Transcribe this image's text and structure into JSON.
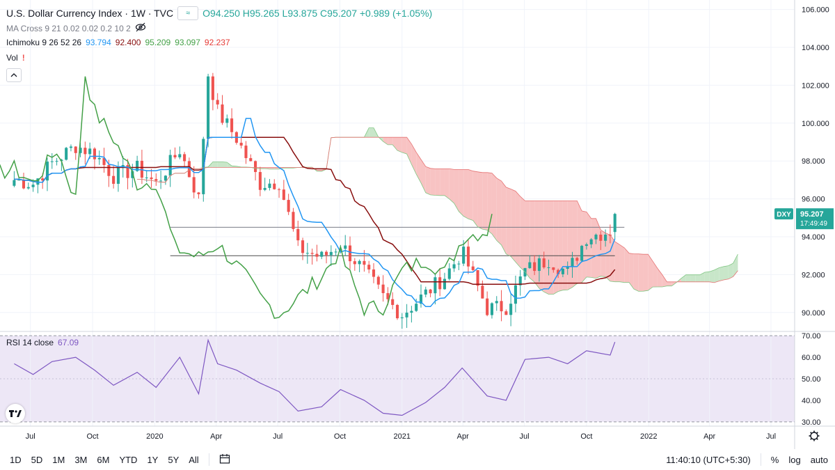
{
  "header": {
    "title": "U.S. Dollar Currency Index · 1W · TVC",
    "compare_badge": "≈",
    "ohlc": "O94.250 H95.265 L93.875 C95.207 +0.989 (+1.05%)"
  },
  "indicators": {
    "ma_cross": "MA Cross 9 21 0.02 0.02 0.2 10 2",
    "ichimoku_label": "Ichimoku 9 26 52 26",
    "ichimoku_values": [
      {
        "value": "93.794",
        "color": "#2196f3"
      },
      {
        "value": "92.400",
        "color": "#880e0e"
      },
      {
        "value": "95.209",
        "color": "#43a047"
      },
      {
        "value": "93.097",
        "color": "#43a047"
      },
      {
        "value": "92.237",
        "color": "#e53935"
      }
    ],
    "vol": "Vol",
    "rsi_label": "RSI 14 close",
    "rsi_value": "67.09"
  },
  "price_axis": {
    "ticks": [
      "106.000",
      "104.000",
      "102.000",
      "100.000",
      "98.000",
      "96.000",
      "94.000",
      "92.000",
      "90.000"
    ],
    "symbol_badge": "DXY",
    "last_price": "95.207",
    "countdown": "17:49:49"
  },
  "rsi_axis": {
    "ticks": [
      "70.00",
      "60.00",
      "50.00",
      "40.00",
      "30.00"
    ]
  },
  "time_axis": {
    "ticks": [
      "Jul",
      "Oct",
      "2020",
      "Apr",
      "Jul",
      "Oct",
      "2021",
      "Apr",
      "Jul",
      "Oct",
      "2022",
      "Apr",
      "Jul"
    ]
  },
  "bottom_bar": {
    "ranges": [
      "1D",
      "5D",
      "1M",
      "3M",
      "6M",
      "YTD",
      "1Y",
      "5Y",
      "All"
    ],
    "clock": "11:40:10 (UTC+5:30)",
    "percent": "%",
    "log": "log",
    "auto": "auto"
  },
  "colors": {
    "up": "#26a69a",
    "down": "#ef5350",
    "tenkan": "#2196f3",
    "kijun": "#880e0e",
    "chikou": "#43a047",
    "cloud_bull": "#c8e6c9",
    "cloud_bear": "#f8c3c3",
    "rsi": "#7e57c2",
    "rsi_band": "#ede7f6"
  },
  "chart_data": {
    "type": "line",
    "title": "U.S. Dollar Currency Index",
    "ylim": [
      89,
      106.5
    ],
    "rsi_ylim": [
      28,
      72
    ],
    "series": [
      {
        "name": "DXY close",
        "x": [
          "2019-06-07",
          "2019-07-05",
          "2019-08-02",
          "2019-09-06",
          "2019-10-04",
          "2019-11-01",
          "2019-12-06",
          "2020-01-03",
          "2020-02-07",
          "2020-03-06",
          "2020-03-20",
          "2020-04-03",
          "2020-05-01",
          "2020-06-05",
          "2020-07-03",
          "2020-07-31",
          "2020-09-04",
          "2020-10-02",
          "2020-11-06",
          "2020-12-04",
          "2021-01-01",
          "2021-02-05",
          "2021-03-05",
          "2021-03-31",
          "2021-05-07",
          "2021-06-04",
          "2021-07-02",
          "2021-08-06",
          "2021-09-03",
          "2021-10-01",
          "2021-11-05",
          "2021-11-12"
        ],
        "y": [
          97.0,
          96.8,
          97.9,
          98.8,
          98.4,
          97.2,
          97.6,
          96.8,
          98.6,
          96.0,
          102.6,
          100.6,
          99.2,
          96.8,
          96.9,
          93.4,
          92.9,
          93.6,
          92.2,
          90.8,
          89.9,
          91.0,
          91.9,
          93.2,
          90.2,
          90.3,
          92.2,
          92.8,
          92.1,
          94.0,
          94.3,
          95.2
        ]
      },
      {
        "name": "RSI 14",
        "x": [
          "2019-06-07",
          "2019-07-05",
          "2019-08-02",
          "2019-09-06",
          "2019-10-04",
          "2019-11-01",
          "2019-12-06",
          "2020-01-03",
          "2020-02-07",
          "2020-03-06",
          "2020-03-20",
          "2020-04-03",
          "2020-05-01",
          "2020-06-05",
          "2020-07-03",
          "2020-07-31",
          "2020-09-04",
          "2020-10-02",
          "2020-11-06",
          "2020-12-04",
          "2021-01-01",
          "2021-02-05",
          "2021-03-05",
          "2021-03-31",
          "2021-05-07",
          "2021-06-04",
          "2021-07-02",
          "2021-08-06",
          "2021-09-03",
          "2021-10-01",
          "2021-11-05",
          "2021-11-12"
        ],
        "y": [
          57,
          52,
          58,
          60,
          54,
          47,
          53,
          46,
          60,
          43,
          68,
          57,
          54,
          48,
          44,
          35,
          37,
          45,
          40,
          34,
          33,
          39,
          46,
          55,
          42,
          40,
          59,
          60,
          57,
          63,
          61,
          67.09
        ]
      }
    ]
  }
}
